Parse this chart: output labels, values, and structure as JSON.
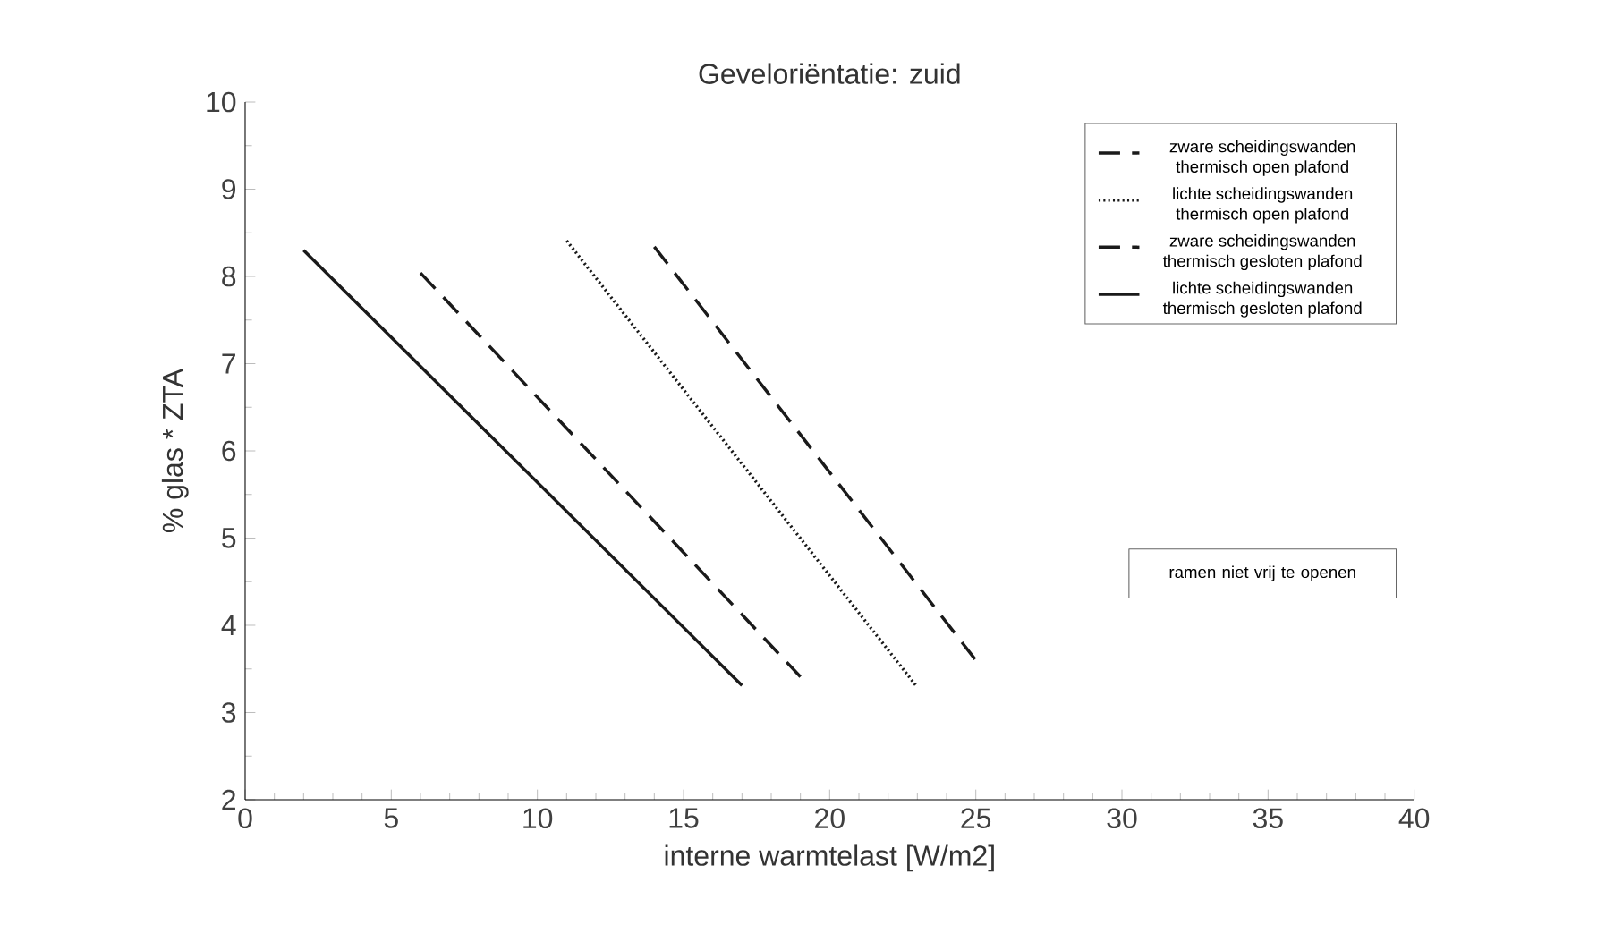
{
  "chart_data": {
    "type": "line",
    "title": "Geveloriëntatie: zuid",
    "xlabel": "interne warmtelast [W/m2]",
    "ylabel": "% glas * ZTA",
    "xlim": [
      0,
      40
    ],
    "ylim": [
      2,
      10
    ],
    "xticks": [
      0,
      5,
      10,
      15,
      20,
      25,
      30,
      35,
      40
    ],
    "yticks": [
      2,
      3,
      4,
      5,
      6,
      7,
      8,
      9,
      10
    ],
    "legend": "top right",
    "grid": false,
    "marker": "none",
    "annotations": [
      "ramen niet vrij te openen"
    ],
    "series": [
      {
        "name": "zware scheidingswanden thermisch open plafond",
        "color": "#1a1a1a",
        "line_style": "dashed",
        "x": [
          14,
          25
        ],
        "values": [
          8.34,
          3.6
        ]
      },
      {
        "name": "lichte scheidingswanden thermisch open plafond",
        "color": "#1a1a1a",
        "line_style": "dotted",
        "x": [
          11,
          23
        ],
        "values": [
          8.41,
          3.29
        ]
      },
      {
        "name": "zware scheidingswanden thermisch gesloten plafond",
        "color": "#1a1a1a",
        "line_style": "dashed",
        "x": [
          6,
          19
        ],
        "values": [
          8.04,
          3.41
        ]
      },
      {
        "name": "lichte scheidingswanden thermisch gesloten plafond",
        "color": "#1a1a1a",
        "line_style": "solid",
        "x": [
          2,
          17
        ],
        "values": [
          8.3,
          3.31
        ]
      }
    ]
  }
}
